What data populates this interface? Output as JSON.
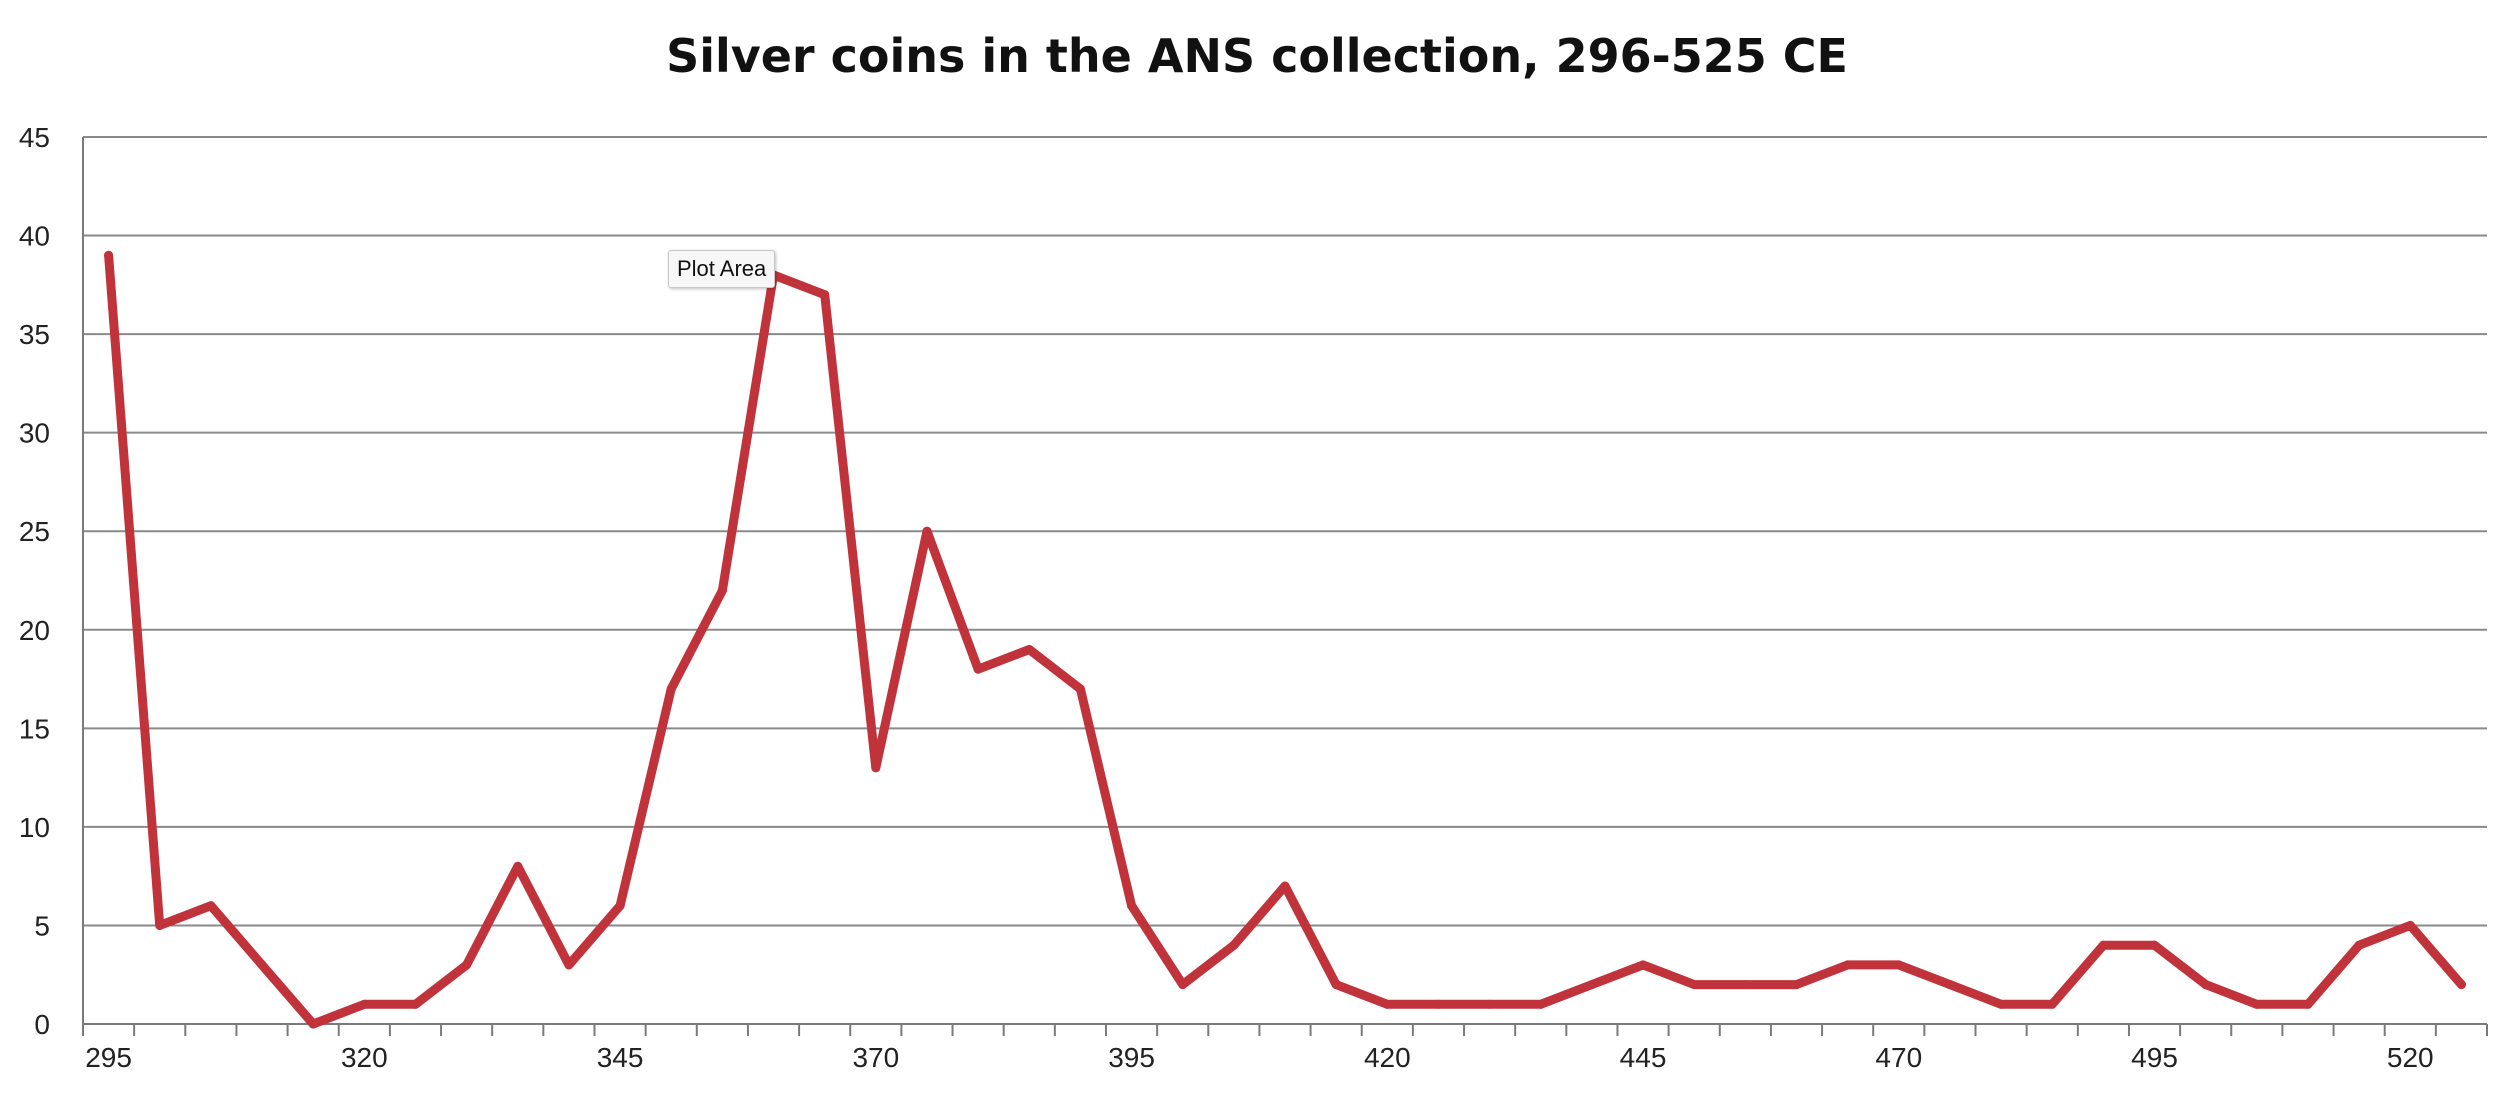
{
  "chart_data": {
    "type": "line",
    "title": "Silver coins in the ANS collection, 296-525 CE",
    "xlabel": "",
    "ylabel": "",
    "xlim": [
      292.5,
      527.5
    ],
    "ylim": [
      0,
      45
    ],
    "x_ticks": [
      295,
      320,
      345,
      370,
      395,
      420,
      445,
      470,
      495,
      520
    ],
    "y_ticks": [
      0,
      5,
      10,
      15,
      20,
      25,
      30,
      35,
      40,
      45
    ],
    "grid": true,
    "legend": "none",
    "series": [
      {
        "color": "#c1333a",
        "x": [
          295,
          300,
          305,
          310,
          315,
          320,
          325,
          330,
          335,
          340,
          345,
          350,
          355,
          360,
          365,
          370,
          375,
          380,
          385,
          390,
          395,
          400,
          405,
          410,
          415,
          420,
          425,
          430,
          435,
          440,
          445,
          450,
          455,
          460,
          465,
          470,
          475,
          480,
          485,
          490,
          495,
          500,
          505,
          510,
          515,
          520,
          525
        ],
        "values": [
          39,
          5,
          6,
          3,
          0,
          1,
          1,
          3,
          8,
          3,
          6,
          17,
          22,
          38,
          37,
          13,
          25,
          18,
          19,
          17,
          6,
          2,
          4,
          7,
          2,
          1,
          1,
          1,
          1,
          2,
          3,
          2,
          2,
          2,
          3,
          3,
          2,
          1,
          1,
          4,
          4,
          2,
          1,
          1,
          4,
          5,
          2
        ]
      }
    ]
  },
  "tooltip": {
    "label": "Plot Area"
  }
}
